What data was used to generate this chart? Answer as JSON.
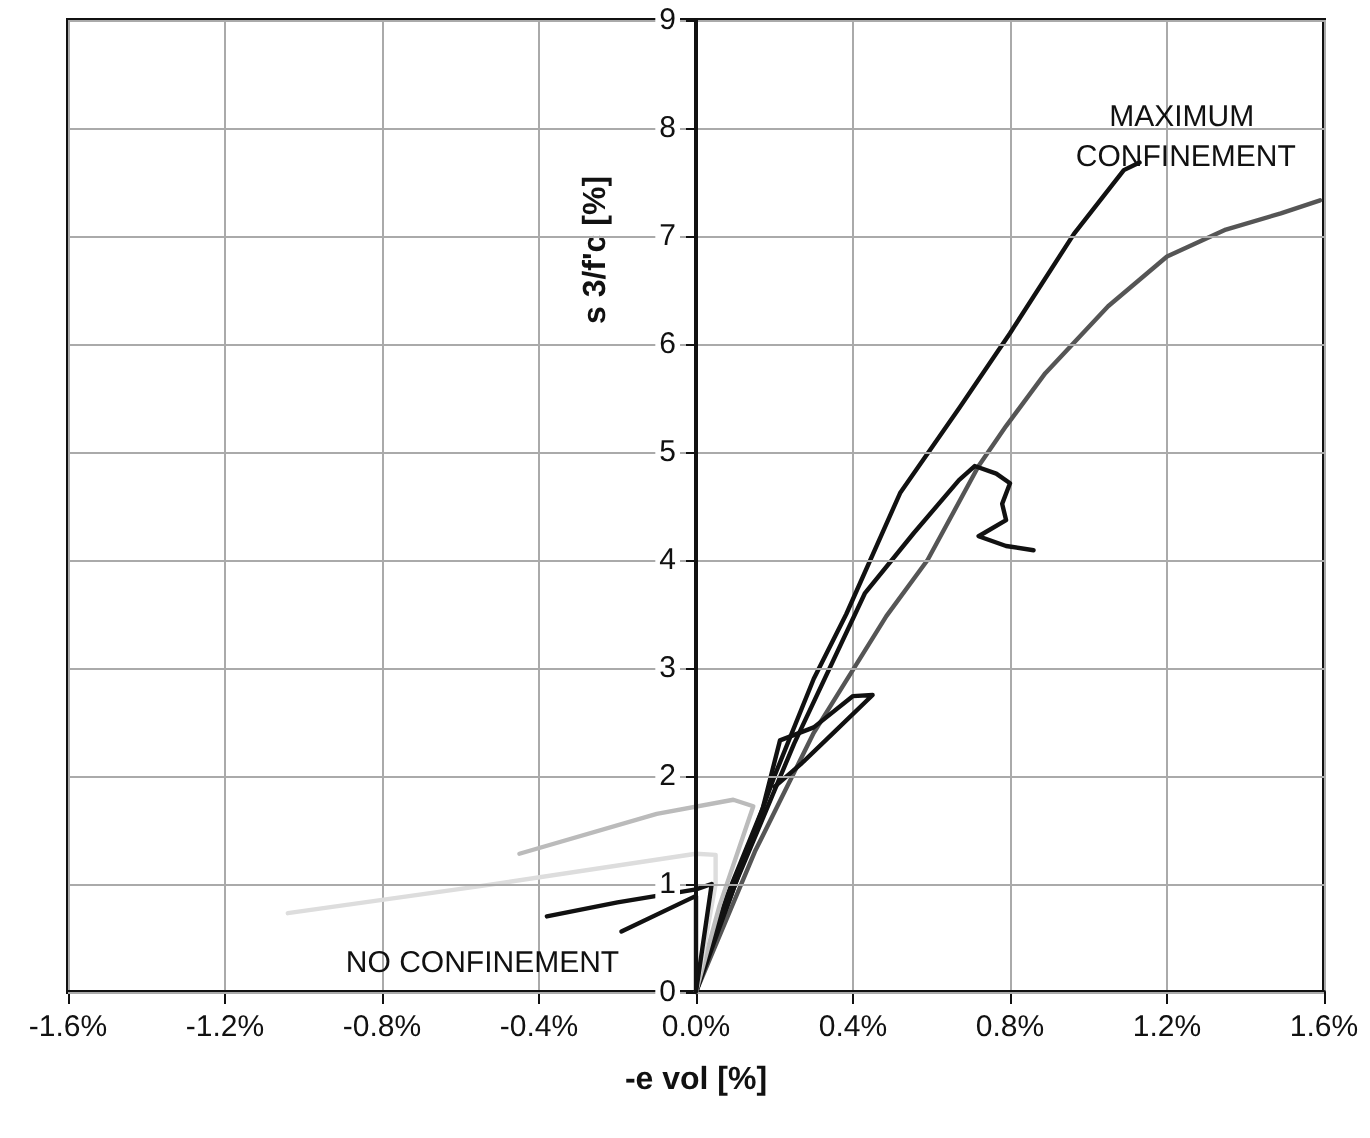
{
  "chart_data": {
    "type": "line",
    "xlabel": "-e vol [%]",
    "ylabel": "s 3/f'c [%]",
    "annotations": [
      "MAXIMUM CONFINEMENT",
      "NO CONFINEMENT"
    ],
    "xlim": [
      -1.6,
      1.6
    ],
    "xticks": [
      {
        "value": -1.6,
        "label": "-1.6%"
      },
      {
        "value": -1.2,
        "label": "-1.2%"
      },
      {
        "value": -0.8,
        "label": "-0.8%"
      },
      {
        "value": -0.4,
        "label": "-0.4%"
      },
      {
        "value": 0,
        "label": "0.0%"
      },
      {
        "value": 0.4,
        "label": "0.4%"
      },
      {
        "value": 0.8,
        "label": "0.8%"
      },
      {
        "value": 1.2,
        "label": "1.2%"
      },
      {
        "value": 1.6,
        "label": "1.6%"
      }
    ],
    "ylim": [
      0,
      9
    ],
    "yticks": [
      0,
      1,
      2,
      3,
      4,
      5,
      6,
      7,
      8,
      9
    ],
    "grid": true,
    "marker": "none",
    "line_style": "solid",
    "series": [
      {
        "color": "#111111",
        "x": [
          0,
          0.1,
          0.2,
          0.3,
          0.383,
          0.52,
          0.673,
          0.8,
          0.963,
          1.09,
          1.13
        ],
        "values": [
          0,
          1.0,
          2.0,
          2.9,
          3.5,
          4.62,
          5.42,
          6.1,
          7.02,
          7.61,
          7.68
        ]
      },
      {
        "color": "#555555",
        "x": [
          0,
          0.15,
          0.3,
          0.485,
          0.59,
          0.72,
          0.79,
          0.89,
          1.05,
          1.2,
          1.35,
          1.49,
          1.59
        ],
        "values": [
          0,
          1.3,
          2.4,
          3.48,
          4.0,
          4.87,
          5.24,
          5.73,
          6.35,
          6.81,
          7.06,
          7.21,
          7.33
        ]
      },
      {
        "color": "#111111",
        "x": [
          0,
          0.1,
          0.25,
          0.43,
          0.555,
          0.67,
          0.71,
          0.765,
          0.8,
          0.78,
          0.79,
          0.72,
          0.79,
          0.86
        ],
        "values": [
          0,
          1.0,
          2.3,
          3.69,
          4.25,
          4.74,
          4.87,
          4.8,
          4.71,
          4.52,
          4.37,
          4.22,
          4.13,
          4.09
        ]
      },
      {
        "color": "#111111",
        "x": [
          0,
          0.08,
          0.17,
          0.214,
          0.3,
          0.4,
          0.45,
          0.35,
          0.27,
          0.2
        ],
        "values": [
          0,
          0.9,
          1.7,
          2.33,
          2.45,
          2.74,
          2.75,
          2.4,
          2.12,
          1.9
        ]
      },
      {
        "color": "#bbbbbb",
        "x": [
          0,
          0.06,
          0.146,
          0.095,
          -0.1,
          -0.45
        ],
        "values": [
          0,
          0.8,
          1.72,
          1.78,
          1.65,
          1.28
        ]
      },
      {
        "color": "#dddddd",
        "x": [
          0,
          0.05,
          0.05,
          0.0,
          -0.55,
          -1.04
        ],
        "values": [
          0,
          1.0,
          1.27,
          1.28,
          0.98,
          0.73
        ]
      },
      {
        "color": "#111111",
        "x": [
          0,
          0.04,
          0.0,
          -0.2,
          -0.38
        ],
        "values": [
          0,
          1.0,
          0.95,
          0.83,
          0.7
        ]
      },
      {
        "color": "#111111",
        "x": [
          0,
          0.0,
          -0.19
        ],
        "values": [
          0,
          0.89,
          0.56
        ]
      }
    ]
  }
}
